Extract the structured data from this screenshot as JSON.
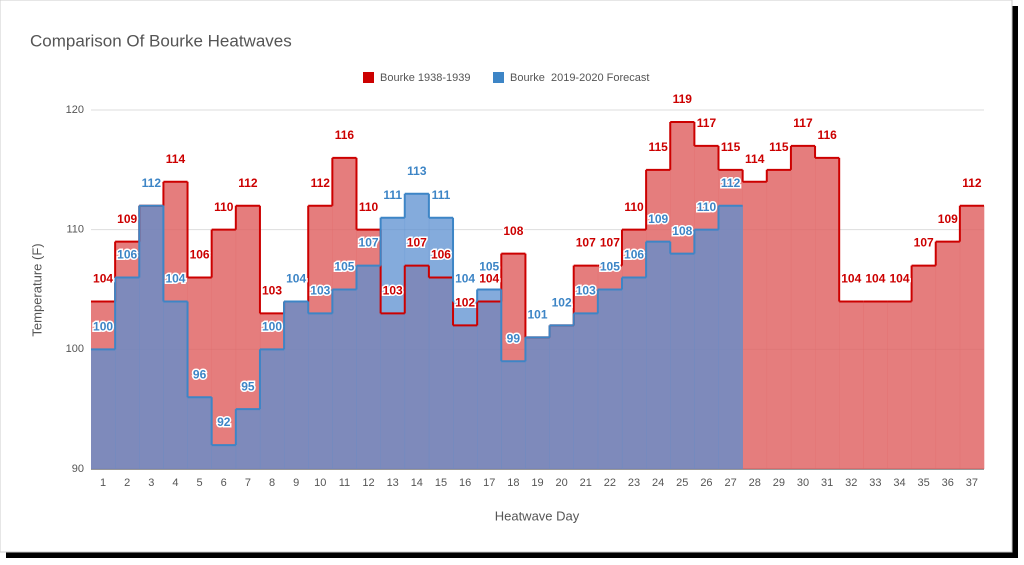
{
  "chart_data": {
    "type": "stepped-area",
    "title": "Comparison Of Bourke Heatwaves",
    "x_label": "Heatwave Day",
    "y_label": "Temperature (F)",
    "categories": [
      1,
      2,
      3,
      4,
      5,
      6,
      7,
      8,
      9,
      10,
      11,
      12,
      13,
      14,
      15,
      16,
      17,
      18,
      19,
      20,
      21,
      22,
      23,
      24,
      25,
      26,
      27,
      28,
      29,
      30,
      31,
      32,
      33,
      34,
      35,
      36,
      37
    ],
    "series": [
      {
        "name": "Bourke 1938-1939",
        "color": "#cc0000",
        "fill": "#e06666",
        "values": [
          104,
          109,
          112,
          114,
          106,
          110,
          112,
          103,
          104,
          112,
          116,
          110,
          103,
          107,
          106,
          102,
          104,
          108,
          101,
          102,
          107,
          107,
          110,
          115,
          119,
          117,
          115,
          114,
          115,
          117,
          116,
          104,
          104,
          104,
          107,
          109,
          112
        ]
      },
      {
        "name": "Bourke  2019-2020 Forecast",
        "color": "#3d85c6",
        "fill": "#5b8fd0",
        "values": [
          100,
          106,
          112,
          104,
          96,
          92,
          95,
          100,
          104,
          103,
          105,
          107,
          111,
          113,
          111,
          104,
          105,
          99,
          101,
          102,
          103,
          105,
          106,
          109,
          108,
          110,
          112,
          null,
          null,
          null,
          null,
          null,
          null,
          null,
          null,
          null,
          null
        ]
      }
    ],
    "ylim": [
      90,
      120
    ],
    "yticks": [
      90,
      100,
      110,
      120
    ],
    "grid": true,
    "legend": "top"
  }
}
